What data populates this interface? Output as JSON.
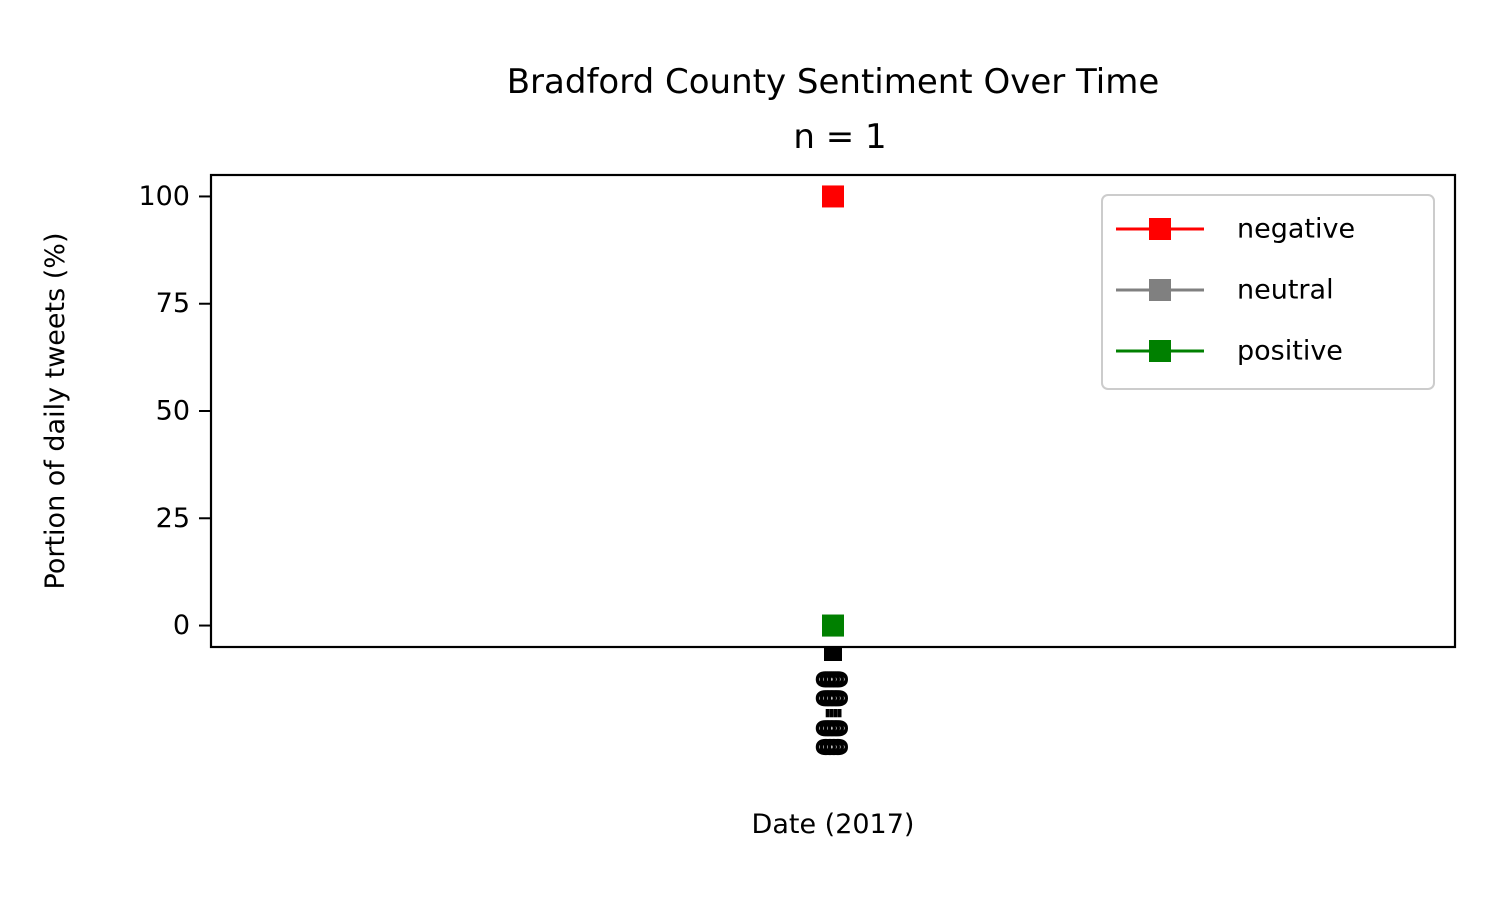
{
  "chart_data": {
    "type": "line",
    "title": "Bradford County Sentiment Over Time",
    "subtitle": "n = 1",
    "xlabel": "Date (2017)",
    "ylabel": "Portion of daily tweets (%)",
    "ylim": [
      -5,
      105
    ],
    "yticks": [
      0,
      25,
      50,
      75,
      100
    ],
    "ytick_labels": [
      "0",
      "25",
      "50",
      "75",
      "100"
    ],
    "x_tick_labels": [
      "00-00",
      "00-00",
      "00-00",
      "00-00"
    ],
    "series": [
      {
        "name": "negative",
        "color": "#ff0000",
        "marker": "square",
        "values": [
          100
        ]
      },
      {
        "name": "neutral",
        "color": "#808080",
        "marker": "square",
        "values": [
          0
        ]
      },
      {
        "name": "positive",
        "color": "#008000",
        "marker": "square",
        "values": [
          0
        ]
      }
    ],
    "legend_position": "top-right",
    "grid": false
  }
}
